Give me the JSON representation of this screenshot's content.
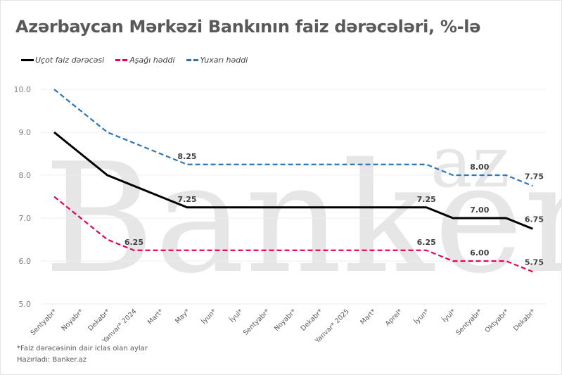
{
  "title": "Azərbaycan Mərkəzi Bankının faiz dərəcələri, %-lə",
  "legend": [
    {
      "label": "Uçot faiz dərəcəsi",
      "color": "#000000",
      "style": "solid"
    },
    {
      "label": "Aşağı həddi",
      "color": "#e6005c",
      "style": "dashed"
    },
    {
      "label": "Yuxarı həddi",
      "color": "#2e75b6",
      "style": "dashed"
    }
  ],
  "footnotes": {
    "note": "*Faiz dərəcəsinin dair iclas olan aylar",
    "source": "Hazırladı: Banker.az"
  },
  "watermark": {
    "main": "Banker",
    "sup": "az"
  },
  "chart_data": {
    "type": "line",
    "title": "Azərbaycan Mərkəzi Bankının faiz dərəcələri, %-lə",
    "xlabel": "",
    "ylabel": "",
    "ylim": [
      5.0,
      10.0
    ],
    "yticks": [
      "10.0",
      "9.0",
      "8.0",
      "7.0",
      "6.0",
      "5.0"
    ],
    "grid": true,
    "legend_position": "top-left",
    "categories": [
      "Sentyabr*",
      "Noyabr*",
      "Dekabr*",
      "Yanvar* 2024",
      "Mart*",
      "May*",
      "İyun*",
      "İyul*",
      "Sentyabr*",
      "Noyabr*",
      "Dekabr*",
      "Yanvar* 2025",
      "Mart*",
      "Aprel*",
      "İyun*",
      "İyul*",
      "Sentyabr*",
      "Oktyabr*",
      "Dekabr*"
    ],
    "series": [
      {
        "name": "Uçot faiz dərəcəsi",
        "color": "#000000",
        "values": [
          9.0,
          8.5,
          8.0,
          7.75,
          7.5,
          7.25,
          7.25,
          7.25,
          7.25,
          7.25,
          7.25,
          7.25,
          7.25,
          7.25,
          7.25,
          7.0,
          7.0,
          7.0,
          6.75
        ]
      },
      {
        "name": "Aşağı həddi",
        "color": "#e6005c",
        "values": [
          7.5,
          7.0,
          6.5,
          6.25,
          6.25,
          6.25,
          6.25,
          6.25,
          6.25,
          6.25,
          6.25,
          6.25,
          6.25,
          6.25,
          6.25,
          6.0,
          6.0,
          6.0,
          5.75
        ]
      },
      {
        "name": "Yuxarı həddi",
        "color": "#2e75b6",
        "values": [
          10.0,
          9.5,
          9.0,
          8.75,
          8.5,
          8.25,
          8.25,
          8.25,
          8.25,
          8.25,
          8.25,
          8.25,
          8.25,
          8.25,
          8.25,
          8.0,
          8.0,
          8.0,
          7.75
        ]
      }
    ],
    "annotations": [
      {
        "series": "Yuxarı həddi",
        "index": 5,
        "text": "8.25"
      },
      {
        "series": "Uçot faiz dərəcəsi",
        "index": 5,
        "text": "7.25"
      },
      {
        "series": "Aşağı həddi",
        "index": 3,
        "text": "6.25"
      },
      {
        "series": "Uçot faiz dərəcəsi",
        "index": 14,
        "text": "7.25"
      },
      {
        "series": "Aşağı həddi",
        "index": 14,
        "text": "6.25"
      },
      {
        "series": "Yuxarı həddi",
        "index": 16,
        "text": "8.00"
      },
      {
        "series": "Uçot faiz dərəcəsi",
        "index": 16,
        "text": "7.00"
      },
      {
        "series": "Aşağı həddi",
        "index": 16,
        "text": "6.00"
      },
      {
        "series": "Yuxarı həddi",
        "index": 18,
        "text": "7.75"
      },
      {
        "series": "Uçot faiz dərəcəsi",
        "index": 18,
        "text": "6.75"
      },
      {
        "series": "Aşağı həddi",
        "index": 18,
        "text": "5.75"
      }
    ]
  }
}
